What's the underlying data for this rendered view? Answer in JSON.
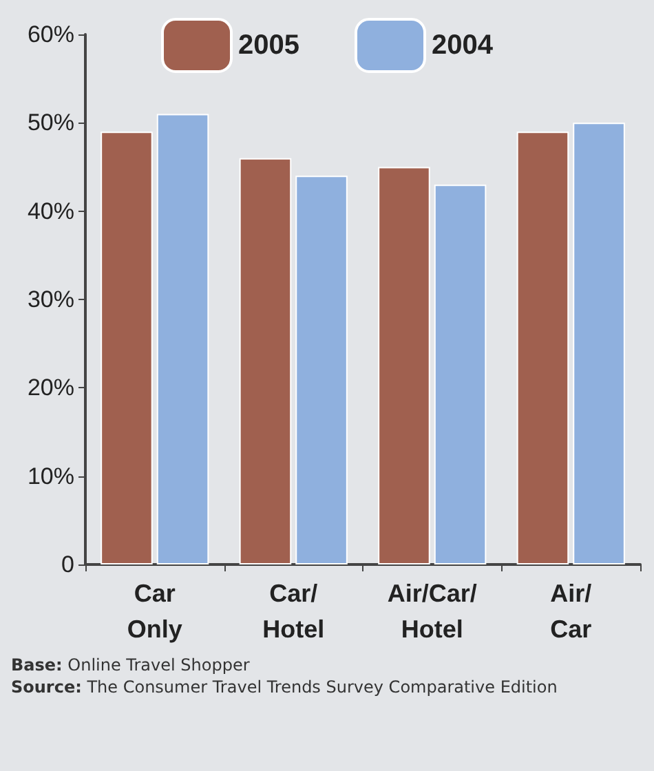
{
  "chart_data": {
    "type": "bar",
    "categories": [
      "Car\nOnly",
      "Car/\nHotel",
      "Air/Car/\nHotel",
      "Air/\nCar"
    ],
    "series": [
      {
        "name": "2005",
        "color": "#a0604f",
        "values": [
          49,
          46,
          45,
          49
        ]
      },
      {
        "name": "2004",
        "color": "#8fb0de",
        "values": [
          51,
          44,
          43,
          50
        ]
      }
    ],
    "ylim": [
      0,
      60
    ],
    "yticks": [
      0,
      {
        "value": 10,
        "label": "10%"
      },
      {
        "value": 20,
        "label": "20%"
      },
      {
        "value": 30,
        "label": "30%"
      },
      {
        "value": 40,
        "label": "40%"
      },
      {
        "value": 50,
        "label": "50%"
      },
      {
        "value": 60,
        "label": "60%"
      }
    ],
    "grid": false,
    "legend": "top",
    "annotations": [
      "Base: Online Travel Shopper",
      "Source: The Consumer Travel Trends Survey Comparative Edition"
    ]
  }
}
